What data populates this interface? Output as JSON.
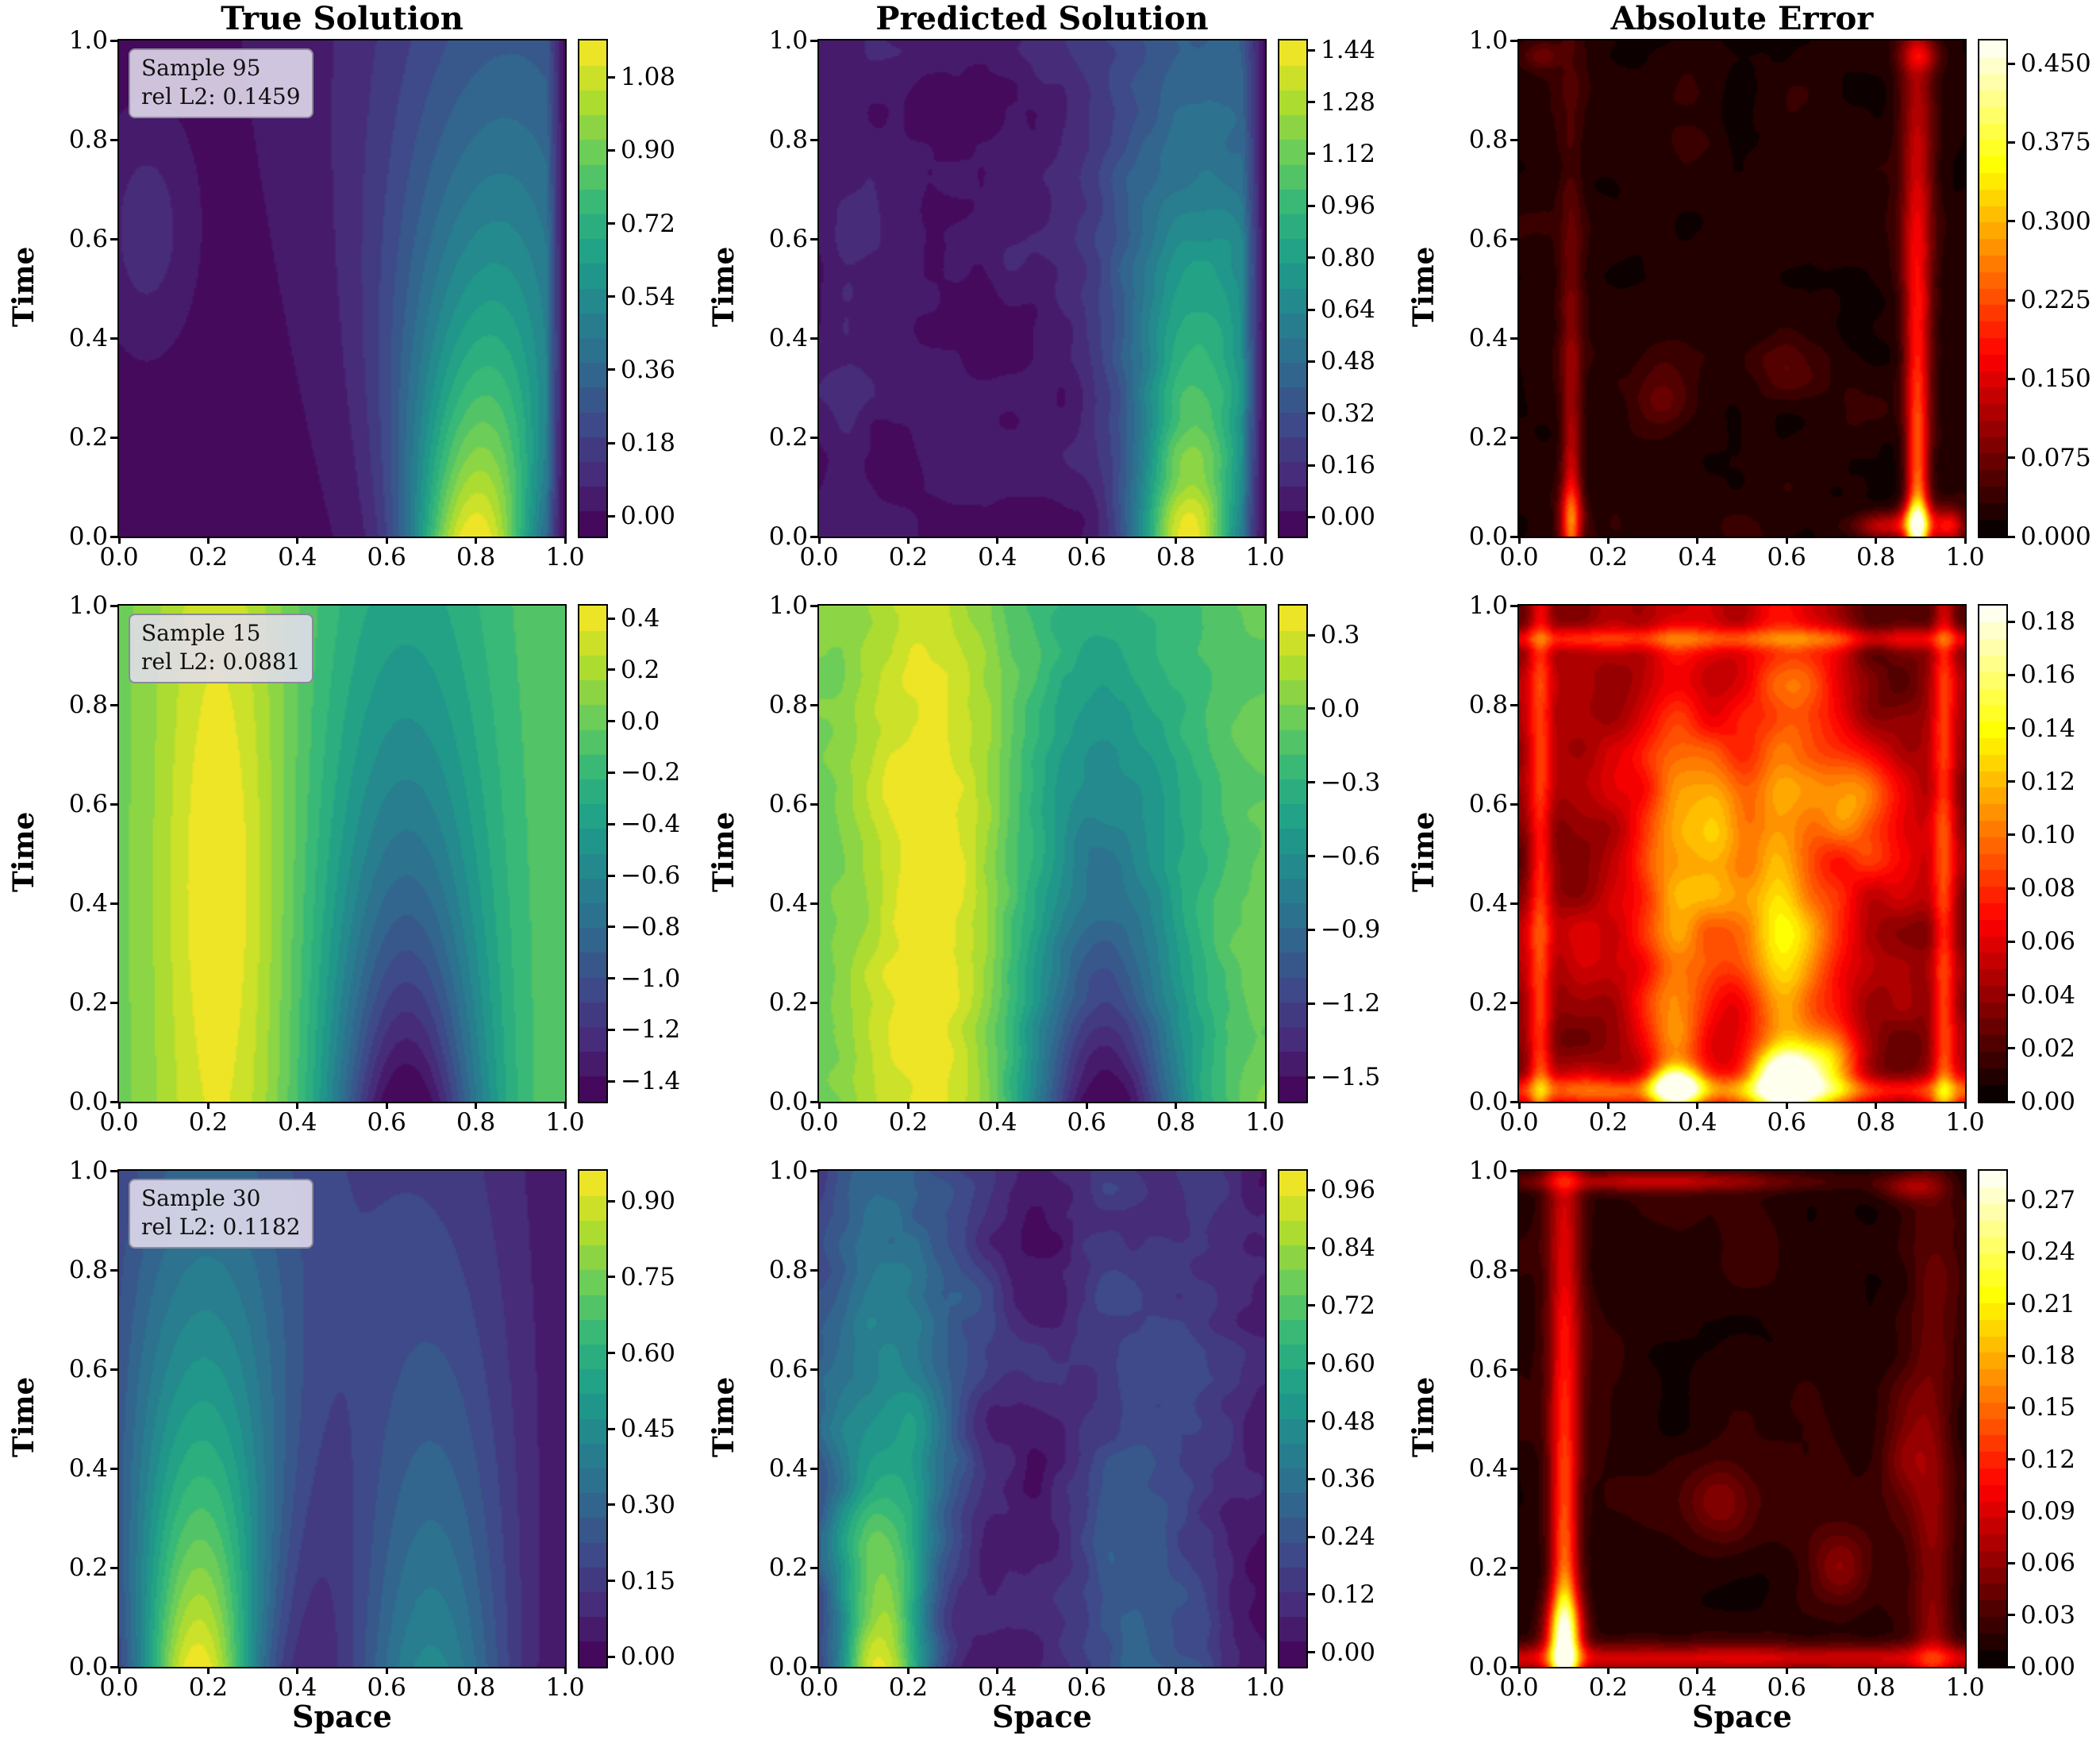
{
  "figure": {
    "background": "#ffffff"
  },
  "axes": {
    "xtick_labels": [
      "0.0",
      "0.2",
      "0.4",
      "0.6",
      "0.8",
      "1.0"
    ],
    "xtick_values": [
      0,
      0.2,
      0.4,
      0.6,
      0.8,
      1.0
    ],
    "ytick_labels": [
      "0.0",
      "0.2",
      "0.4",
      "0.6",
      "0.8",
      "1.0"
    ],
    "ytick_values": [
      0,
      0.2,
      0.4,
      0.6,
      0.8,
      1.0
    ]
  },
  "chart_data": [
    {
      "type": "heatmap",
      "row": 0,
      "col": 0,
      "title": "True Solution",
      "xlabel": "",
      "ylabel": "Time",
      "xlim": [
        0,
        1
      ],
      "ylim": [
        0,
        1
      ],
      "annotation": {
        "sample": "Sample 95",
        "rel_l2": "rel L2: 0.1459"
      },
      "colormap": "viridis",
      "vmin": -0.05,
      "vmax": 1.17,
      "levels": 20,
      "colorbar": {
        "tick_values": [
          0.0,
          0.18,
          0.36,
          0.54,
          0.72,
          0.9,
          1.08
        ],
        "tick_labels": [
          "0.00",
          "0.18",
          "0.36",
          "0.54",
          "0.72",
          "0.90",
          "1.08"
        ]
      },
      "field": {
        "base": 0,
        "xedge_right": 0.04,
        "components": [
          {
            "kind": "plume",
            "amp": 1.18,
            "x": 0.8,
            "vx": 0.08,
            "sx": 0.105,
            "gx": 0.13,
            "decay": 1.35
          },
          {
            "kind": "gauss",
            "amp": 0.13,
            "x": 0.06,
            "t": 0.62,
            "sx": 0.055,
            "st": 0.12
          }
        ]
      }
    },
    {
      "type": "heatmap",
      "row": 0,
      "col": 1,
      "title": "Predicted Solution",
      "xlabel": "",
      "ylabel": "Time",
      "xlim": [
        0,
        1
      ],
      "ylim": [
        0,
        1
      ],
      "annotation": null,
      "colormap": "viridis",
      "vmin": -0.06,
      "vmax": 1.47,
      "levels": 20,
      "colorbar": {
        "tick_values": [
          0.0,
          0.16,
          0.32,
          0.48,
          0.64,
          0.8,
          0.96,
          1.12,
          1.28,
          1.44
        ],
        "tick_labels": [
          "0.00",
          "0.16",
          "0.32",
          "0.48",
          "0.64",
          "0.80",
          "0.96",
          "1.12",
          "1.28",
          "1.44"
        ]
      },
      "field": {
        "base": 0.02,
        "xedge_right": 0.05,
        "components": [
          {
            "kind": "plume",
            "amp": 1.4,
            "x": 0.83,
            "vx": 0.06,
            "sx": 0.085,
            "gx": 0.12,
            "decay": 1.25
          },
          {
            "kind": "gauss",
            "amp": 0.12,
            "x": 0.05,
            "t": 0.6,
            "sx": 0.04,
            "st": 0.15
          },
          {
            "kind": "gauss",
            "amp": 0.1,
            "x": 0.06,
            "t": 0.2,
            "sx": 0.03,
            "st": 0.1
          },
          {
            "kind": "noise",
            "amp": 0.09,
            "scale": 7,
            "seed": 11,
            "centered": true
          }
        ]
      }
    },
    {
      "type": "heatmap",
      "row": 0,
      "col": 2,
      "title": "Absolute Error",
      "xlabel": "",
      "ylabel": "Time",
      "xlim": [
        0,
        1
      ],
      "ylim": [
        0,
        1
      ],
      "annotation": null,
      "colormap": "hot",
      "vmin": 0,
      "vmax": 0.472,
      "levels": 30,
      "colorbar": {
        "tick_values": [
          0.0,
          0.075,
          0.15,
          0.225,
          0.3,
          0.375,
          0.45
        ],
        "tick_labels": [
          "0.000",
          "0.075",
          "0.150",
          "0.225",
          "0.300",
          "0.375",
          "0.450"
        ]
      },
      "field": {
        "base": 0.004,
        "clip0": true,
        "components": [
          {
            "kind": "plume",
            "amp": 0.26,
            "x": 0.895,
            "vx": 0,
            "sx": 0.016,
            "gx": 0.012,
            "decay": 1.1
          },
          {
            "kind": "gauss",
            "amp": 0.24,
            "x": 0.895,
            "t": 0.025,
            "sx": 0.025,
            "st": 0.03
          },
          {
            "kind": "plume",
            "amp": 0.16,
            "x": 0.115,
            "vx": 0,
            "sx": 0.014,
            "gx": 0.008,
            "decay": 2.2
          },
          {
            "kind": "gauss",
            "amp": 0.1,
            "x": 0.115,
            "t": 0.04,
            "sx": 0.02,
            "st": 0.04
          },
          {
            "kind": "gauss",
            "amp": 0.16,
            "x": 0.965,
            "t": 0.02,
            "sx": 0.025,
            "st": 0.025
          },
          {
            "kind": "gauss",
            "amp": 0.12,
            "x": 0.82,
            "t": 0.02,
            "sx": 0.05,
            "st": 0.02
          },
          {
            "kind": "gauss",
            "amp": 0.05,
            "x": 0.32,
            "t": 0.28,
            "sx": 0.05,
            "st": 0.05
          },
          {
            "kind": "gauss",
            "amp": 0.04,
            "x": 0.6,
            "t": 0.33,
            "sx": 0.06,
            "st": 0.05
          },
          {
            "kind": "gauss",
            "amp": 0.07,
            "x": 0.9,
            "t": 0.97,
            "sx": 0.03,
            "st": 0.02
          },
          {
            "kind": "gauss",
            "amp": 0.05,
            "x": 0.05,
            "t": 0.97,
            "sx": 0.03,
            "st": 0.02
          },
          {
            "kind": "noise",
            "amp": 0.035,
            "scale": 8,
            "seed": 21
          }
        ]
      }
    },
    {
      "type": "heatmap",
      "row": 1,
      "col": 0,
      "title": "",
      "xlabel": "",
      "ylabel": "Time",
      "xlim": [
        0,
        1
      ],
      "ylim": [
        0,
        1
      ],
      "annotation": {
        "sample": "Sample 15",
        "rel_l2": "rel L2: 0.0881"
      },
      "colormap": "viridis",
      "vmin": -1.48,
      "vmax": 0.45,
      "levels": 20,
      "colorbar": {
        "tick_values": [
          -1.4,
          -1.2,
          -1.0,
          -0.8,
          -0.6,
          -0.4,
          -0.2,
          0.0,
          0.2,
          0.4
        ],
        "tick_labels": [
          "−1.4",
          "−1.2",
          "−1.0",
          "−0.8",
          "−0.6",
          "−0.4",
          "−0.2",
          "0.0",
          "0.2",
          "0.4"
        ]
      },
      "field": {
        "base": -0.02,
        "components": [
          {
            "kind": "plume",
            "amp": 0.34,
            "x": 0.22,
            "vx": 0,
            "sx": 0.115,
            "gx": 0,
            "decay": 0.05
          },
          {
            "kind": "gauss",
            "amp": 0.14,
            "x": 0.23,
            "t": 0.45,
            "sx": 0.09,
            "st": 0.32
          },
          {
            "kind": "plume",
            "amp": -1.52,
            "x": 0.645,
            "vx": 0,
            "sx": 0.125,
            "gx": 0.03,
            "decay": 1.45
          }
        ]
      }
    },
    {
      "type": "heatmap",
      "row": 1,
      "col": 1,
      "title": "",
      "xlabel": "",
      "ylabel": "Time",
      "xlim": [
        0,
        1
      ],
      "ylim": [
        0,
        1
      ],
      "annotation": null,
      "colormap": "viridis",
      "vmin": -1.6,
      "vmax": 0.42,
      "levels": 20,
      "colorbar": {
        "tick_values": [
          -1.5,
          -1.2,
          -0.9,
          -0.6,
          -0.3,
          0.0,
          0.3
        ],
        "tick_labels": [
          "−1.5",
          "−1.2",
          "−0.9",
          "−0.6",
          "−0.3",
          "0.0",
          "0.3"
        ]
      },
      "field": {
        "base": -0.02,
        "components": [
          {
            "kind": "plume",
            "amp": 0.36,
            "x": 0.245,
            "vx": 0,
            "sx": 0.12,
            "gx": 0,
            "decay": 0.05
          },
          {
            "kind": "gauss",
            "amp": 0.1,
            "x": 0.25,
            "t": 0.4,
            "sx": 0.1,
            "st": 0.3
          },
          {
            "kind": "plume",
            "amp": -1.58,
            "x": 0.64,
            "vx": 0,
            "sx": 0.125,
            "gx": 0.04,
            "decay": 1.5
          },
          {
            "kind": "noise",
            "amp": 0.1,
            "scale": 8,
            "seed": 31,
            "centered": true
          }
        ]
      }
    },
    {
      "type": "heatmap",
      "row": 1,
      "col": 2,
      "title": "",
      "xlabel": "",
      "ylabel": "Time",
      "xlim": [
        0,
        1
      ],
      "ylim": [
        0,
        1
      ],
      "annotation": null,
      "colormap": "hot",
      "vmin": 0,
      "vmax": 0.186,
      "levels": 30,
      "colorbar": {
        "tick_values": [
          0.0,
          0.02,
          0.04,
          0.06,
          0.08,
          0.1,
          0.12,
          0.14,
          0.16,
          0.18
        ],
        "tick_labels": [
          "0.00",
          "0.02",
          "0.04",
          "0.06",
          "0.08",
          "0.10",
          "0.12",
          "0.14",
          "0.16",
          "0.18"
        ]
      },
      "field": {
        "base": 0.006,
        "clip0": true,
        "components": [
          {
            "kind": "noise",
            "amp": 0.05,
            "scale": 6,
            "seed": 41
          },
          {
            "kind": "gauss",
            "amp": 0.04,
            "x": 0.5,
            "t": 0.45,
            "sx": 0.28,
            "st": 0.3
          },
          {
            "kind": "plume",
            "amp": 0.07,
            "x": 0.6,
            "vx": 0,
            "sx": 0.055,
            "gx": 0.02,
            "decay": 0.7
          },
          {
            "kind": "gauss",
            "amp": 0.11,
            "x": 0.6,
            "t": 0.05,
            "sx": 0.05,
            "st": 0.035
          },
          {
            "kind": "gauss",
            "amp": 0.12,
            "x": 0.35,
            "t": 0.03,
            "sx": 0.04,
            "st": 0.028
          },
          {
            "kind": "plume",
            "amp": 0.045,
            "x": 0.35,
            "vx": 0,
            "sx": 0.045,
            "gx": 0.01,
            "decay": 0.6
          },
          {
            "kind": "hband",
            "amp": 0.05,
            "t": 0.02,
            "st": 0.02
          },
          {
            "kind": "plume",
            "amp": 0.05,
            "x": 0.045,
            "vx": 0,
            "sx": 0.018,
            "gx": 0,
            "decay": 0.3
          },
          {
            "kind": "plume",
            "amp": 0.05,
            "x": 0.955,
            "vx": 0,
            "sx": 0.018,
            "gx": 0,
            "decay": 0.3
          },
          {
            "kind": "hband",
            "amp": 0.035,
            "t": 0.935,
            "st": 0.015
          },
          {
            "kind": "gauss",
            "amp": 0.05,
            "x": 0.75,
            "t": 0.6,
            "sx": 0.06,
            "st": 0.08
          },
          {
            "kind": "gauss",
            "amp": 0.05,
            "x": 0.45,
            "t": 0.55,
            "sx": 0.05,
            "st": 0.12
          },
          {
            "kind": "gauss",
            "amp": 0.06,
            "x": 0.7,
            "t": 0.08,
            "sx": 0.05,
            "st": 0.05
          }
        ]
      }
    },
    {
      "type": "heatmap",
      "row": 2,
      "col": 0,
      "title": "",
      "xlabel": "Space",
      "ylabel": "Time",
      "xlim": [
        0,
        1
      ],
      "ylim": [
        0,
        1
      ],
      "annotation": {
        "sample": "Sample 30",
        "rel_l2": "rel L2: 0.1182"
      },
      "colormap": "viridis",
      "vmin": -0.02,
      "vmax": 0.96,
      "levels": 20,
      "colorbar": {
        "tick_values": [
          0.0,
          0.15,
          0.3,
          0.45,
          0.6,
          0.75,
          0.9
        ],
        "tick_labels": [
          "0.00",
          "0.15",
          "0.30",
          "0.45",
          "0.60",
          "0.75",
          "0.90"
        ]
      },
      "field": {
        "base": 0,
        "components": [
          {
            "kind": "plume",
            "amp": 0.96,
            "x": 0.175,
            "vx": 0.02,
            "sx": 0.1,
            "gx": 0.1,
            "decay": 1.15
          },
          {
            "kind": "plume",
            "amp": 0.44,
            "x": 0.7,
            "vx": 0,
            "sx": 0.13,
            "gx": 0.05,
            "decay": 1.05
          }
        ]
      }
    },
    {
      "type": "heatmap",
      "row": 2,
      "col": 1,
      "title": "",
      "xlabel": "Space",
      "ylabel": "Time",
      "xlim": [
        0,
        1
      ],
      "ylim": [
        0,
        1
      ],
      "annotation": null,
      "colormap": "viridis",
      "vmin": -0.03,
      "vmax": 1.0,
      "levels": 20,
      "colorbar": {
        "tick_values": [
          0.0,
          0.12,
          0.24,
          0.36,
          0.48,
          0.6,
          0.72,
          0.84,
          0.96
        ],
        "tick_labels": [
          "0.00",
          "0.12",
          "0.24",
          "0.36",
          "0.48",
          "0.60",
          "0.72",
          "0.84",
          "0.96"
        ]
      },
      "field": {
        "base": 0.01,
        "components": [
          {
            "kind": "plume",
            "amp": 0.99,
            "x": 0.135,
            "vx": 0.03,
            "sx": 0.075,
            "gx": 0.1,
            "decay": 1.25
          },
          {
            "kind": "plume",
            "amp": 0.34,
            "x": 0.72,
            "vx": 0,
            "sx": 0.12,
            "gx": 0.06,
            "decay": 0.9
          },
          {
            "kind": "gauss",
            "amp": -0.07,
            "x": 0.5,
            "t": 0.85,
            "sx": 0.07,
            "st": 0.2
          },
          {
            "kind": "noise",
            "amp": 0.09,
            "scale": 8,
            "seed": 51,
            "centered": true
          }
        ]
      }
    },
    {
      "type": "heatmap",
      "row": 2,
      "col": 2,
      "title": "",
      "xlabel": "Space",
      "ylabel": "Time",
      "xlim": [
        0,
        1
      ],
      "ylim": [
        0,
        1
      ],
      "annotation": null,
      "colormap": "hot",
      "vmin": 0,
      "vmax": 0.287,
      "levels": 30,
      "colorbar": {
        "tick_values": [
          0.0,
          0.03,
          0.06,
          0.09,
          0.12,
          0.15,
          0.18,
          0.21,
          0.24,
          0.27
        ],
        "tick_labels": [
          "0.00",
          "0.03",
          "0.06",
          "0.09",
          "0.12",
          "0.15",
          "0.18",
          "0.21",
          "0.24",
          "0.27"
        ]
      },
      "field": {
        "base": 0.005,
        "clip0": true,
        "components": [
          {
            "kind": "plume",
            "amp": 0.16,
            "x": 0.1,
            "vx": 0,
            "sx": 0.02,
            "gx": 0.008,
            "decay": 0.9
          },
          {
            "kind": "gauss",
            "amp": 0.15,
            "x": 0.1,
            "t": 0.06,
            "sx": 0.03,
            "st": 0.06
          },
          {
            "kind": "hband",
            "amp": 0.07,
            "t": 0.015,
            "st": 0.02
          },
          {
            "kind": "plume",
            "amp": 0.05,
            "x": 0.93,
            "vx": 0,
            "sx": 0.03,
            "gx": 0.01,
            "decay": 1.0
          },
          {
            "kind": "gauss",
            "amp": 0.06,
            "x": 0.3,
            "t": 0.98,
            "sx": 0.25,
            "st": 0.014
          },
          {
            "kind": "gauss",
            "amp": 0.05,
            "x": 0.88,
            "t": 0.97,
            "sx": 0.05,
            "st": 0.02
          },
          {
            "kind": "gauss",
            "amp": 0.035,
            "x": 0.45,
            "t": 0.33,
            "sx": 0.05,
            "st": 0.06
          },
          {
            "kind": "gauss",
            "amp": 0.04,
            "x": 0.72,
            "t": 0.2,
            "sx": 0.05,
            "st": 0.05
          },
          {
            "kind": "gauss",
            "amp": 0.04,
            "x": 0.87,
            "t": 0.45,
            "sx": 0.04,
            "st": 0.1
          },
          {
            "kind": "noise",
            "amp": 0.022,
            "scale": 6,
            "seed": 61
          }
        ]
      }
    }
  ]
}
